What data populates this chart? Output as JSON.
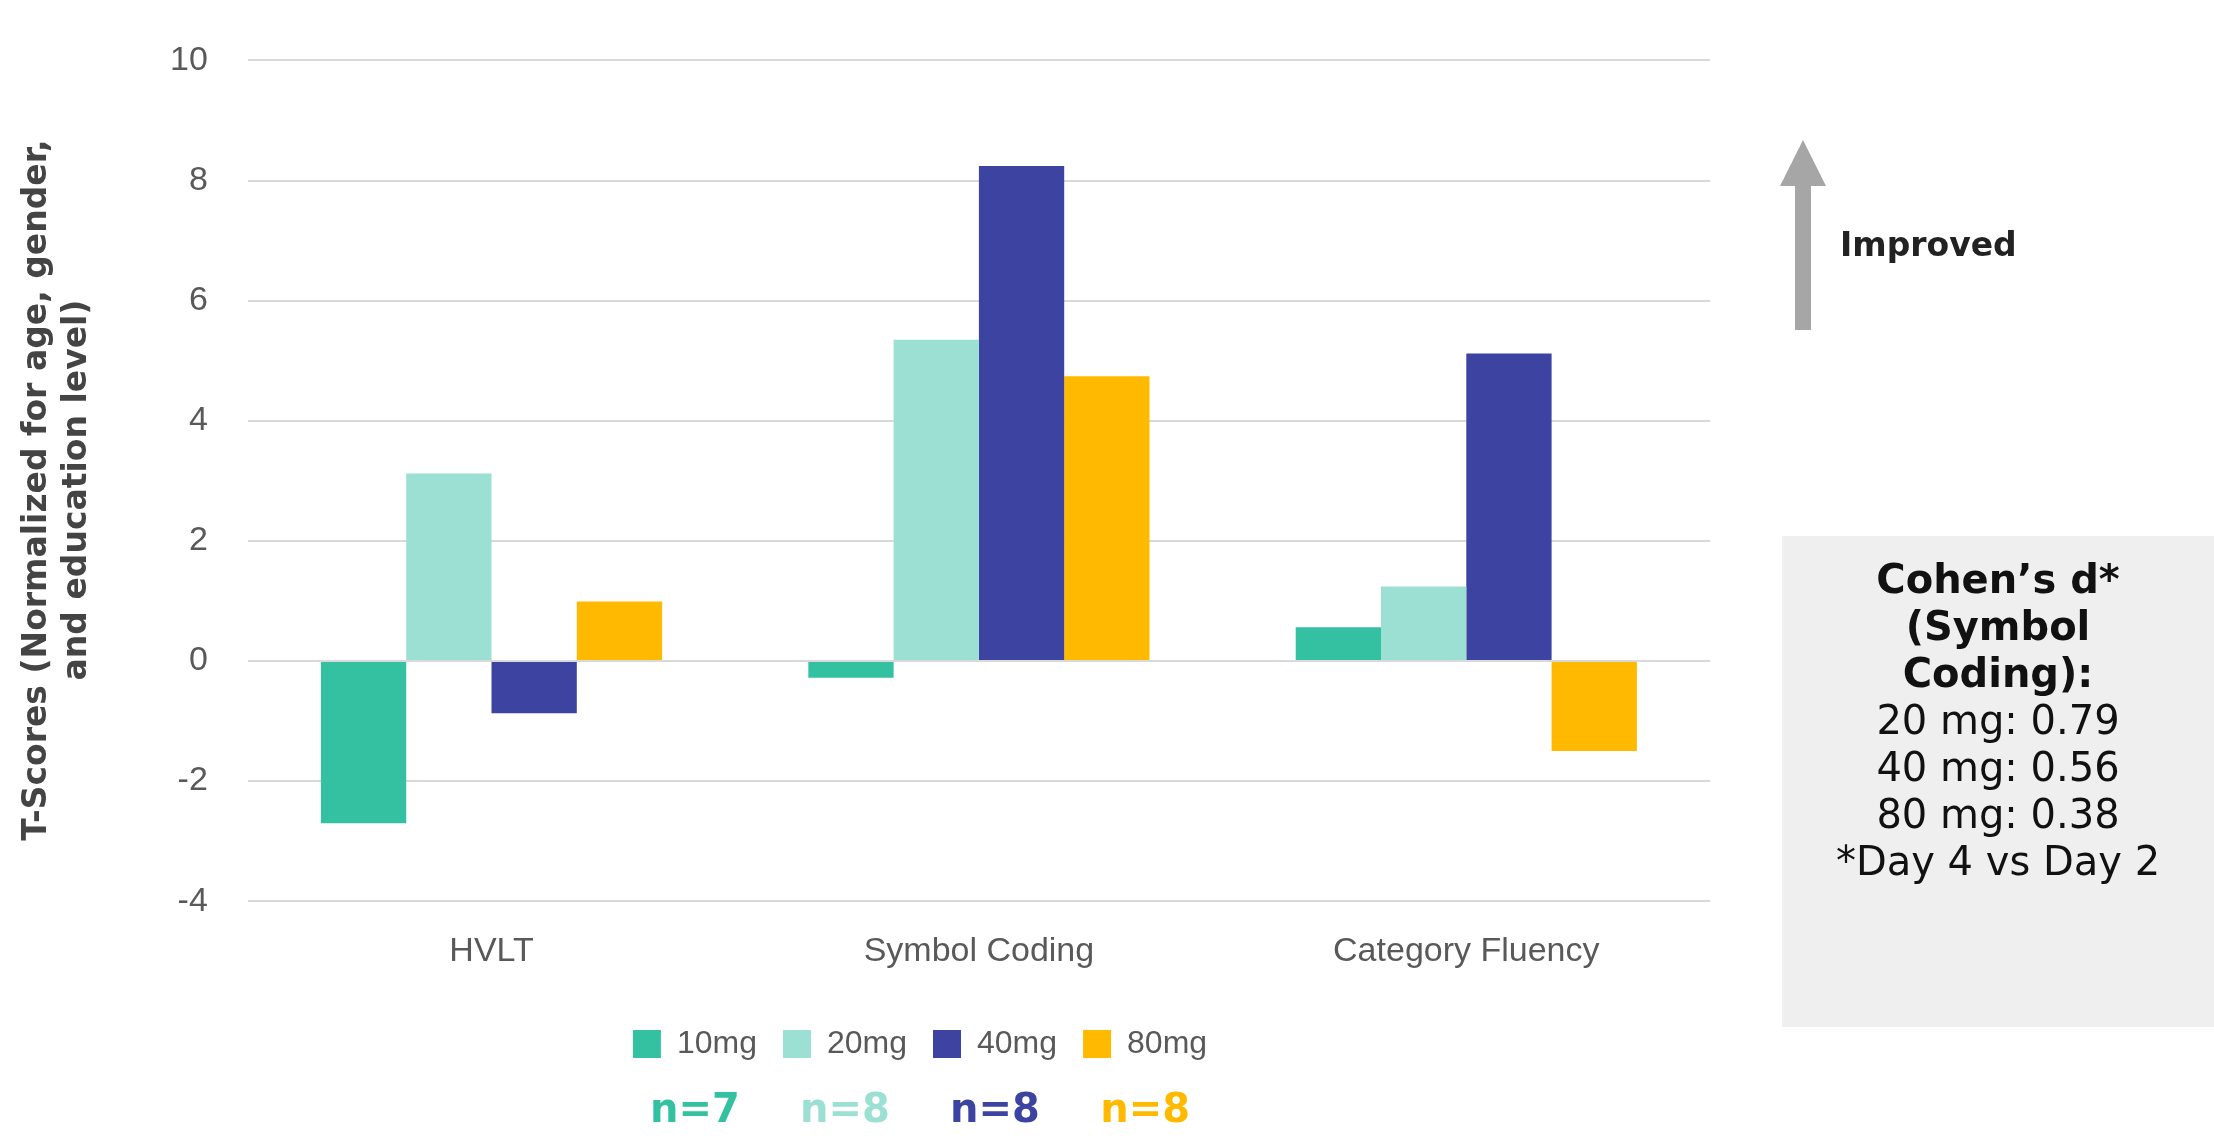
{
  "chart_data": {
    "type": "bar",
    "ylabel": "T-Scores  (Normalized for age, gender, and education level)",
    "categories": [
      "HVLT",
      "Symbol Coding",
      "Category Fluency"
    ],
    "series": [
      {
        "name": "10mg",
        "color": "#33c1a1",
        "values": [
          -2.7,
          -0.28,
          0.56
        ]
      },
      {
        "name": "20mg",
        "color": "#9be0d3",
        "values": [
          3.12,
          5.35,
          1.24
        ]
      },
      {
        "name": "40mg",
        "color": "#3c43a0",
        "values": [
          -0.87,
          8.24,
          5.12
        ]
      },
      {
        "name": "80mg",
        "color": "#ffba00",
        "values": [
          0.99,
          4.74,
          -1.5
        ]
      }
    ],
    "ylim": [
      -4,
      10
    ],
    "yticks": [
      -4,
      -2,
      0,
      2,
      4,
      6,
      8,
      10
    ],
    "grid": "y",
    "legend": "bottom",
    "annotations": [
      "Improved",
      "Cohen’s d* (Symbol Coding):",
      "20 mg:  0.79\n40 mg:  0.56\n80 mg:  0.38\n*Day 4 vs Day 2",
      "n=7",
      "n=8",
      "n=8",
      "n=8"
    ]
  }
}
